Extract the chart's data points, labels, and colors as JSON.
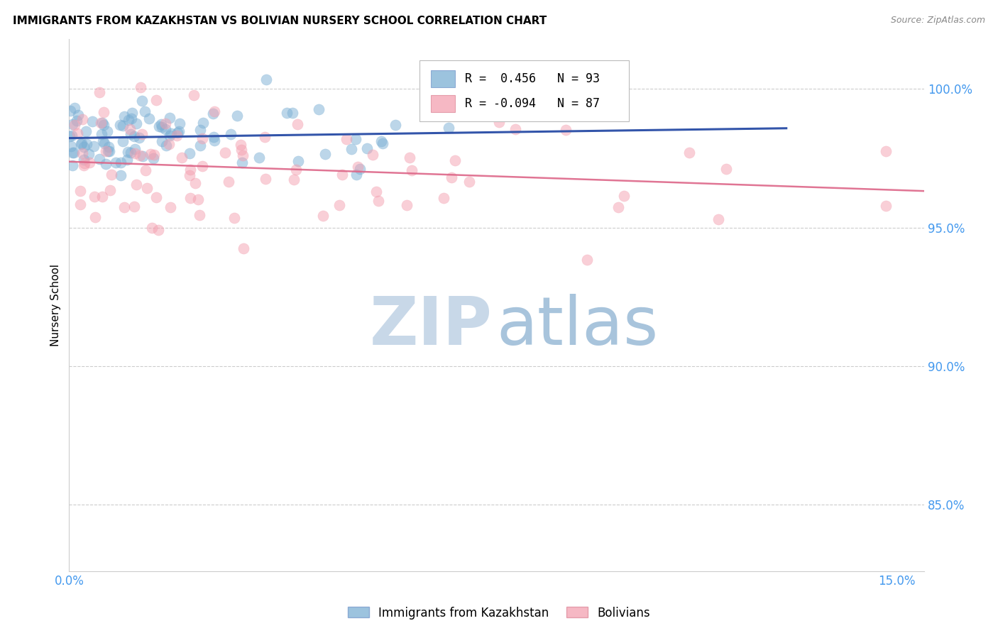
{
  "title": "IMMIGRANTS FROM KAZAKHSTAN VS BOLIVIAN NURSERY SCHOOL CORRELATION CHART",
  "source": "Source: ZipAtlas.com",
  "ylabel": "Nursery School",
  "ytick_values": [
    0.85,
    0.9,
    0.95,
    1.0
  ],
  "ytick_labels": [
    "85.0%",
    "90.0%",
    "95.0%",
    "100.0%"
  ],
  "xtick_values": [
    0.0,
    0.025,
    0.05,
    0.075,
    0.1,
    0.125,
    0.15
  ],
  "xtick_labels": [
    "0.0%",
    "",
    "",
    "",
    "",
    "",
    "15.0%"
  ],
  "xlim": [
    0.0,
    0.155
  ],
  "ylim": [
    0.826,
    1.018
  ],
  "legend_blue_R": " 0.456",
  "legend_blue_N": "93",
  "legend_pink_R": "-0.094",
  "legend_pink_N": "87",
  "blue_color": "#7BAFD4",
  "pink_color": "#F4A0B0",
  "blue_line_color": "#3355AA",
  "pink_line_color": "#DD6688",
  "axis_label_color": "#4499EE",
  "grid_color": "#CCCCCC",
  "title_fontsize": 11,
  "source_fontsize": 9,
  "marker_size": 120,
  "marker_alpha": 0.5,
  "blue_seed": 12,
  "pink_seed": 77,
  "N_blue": 93,
  "N_pink": 87
}
